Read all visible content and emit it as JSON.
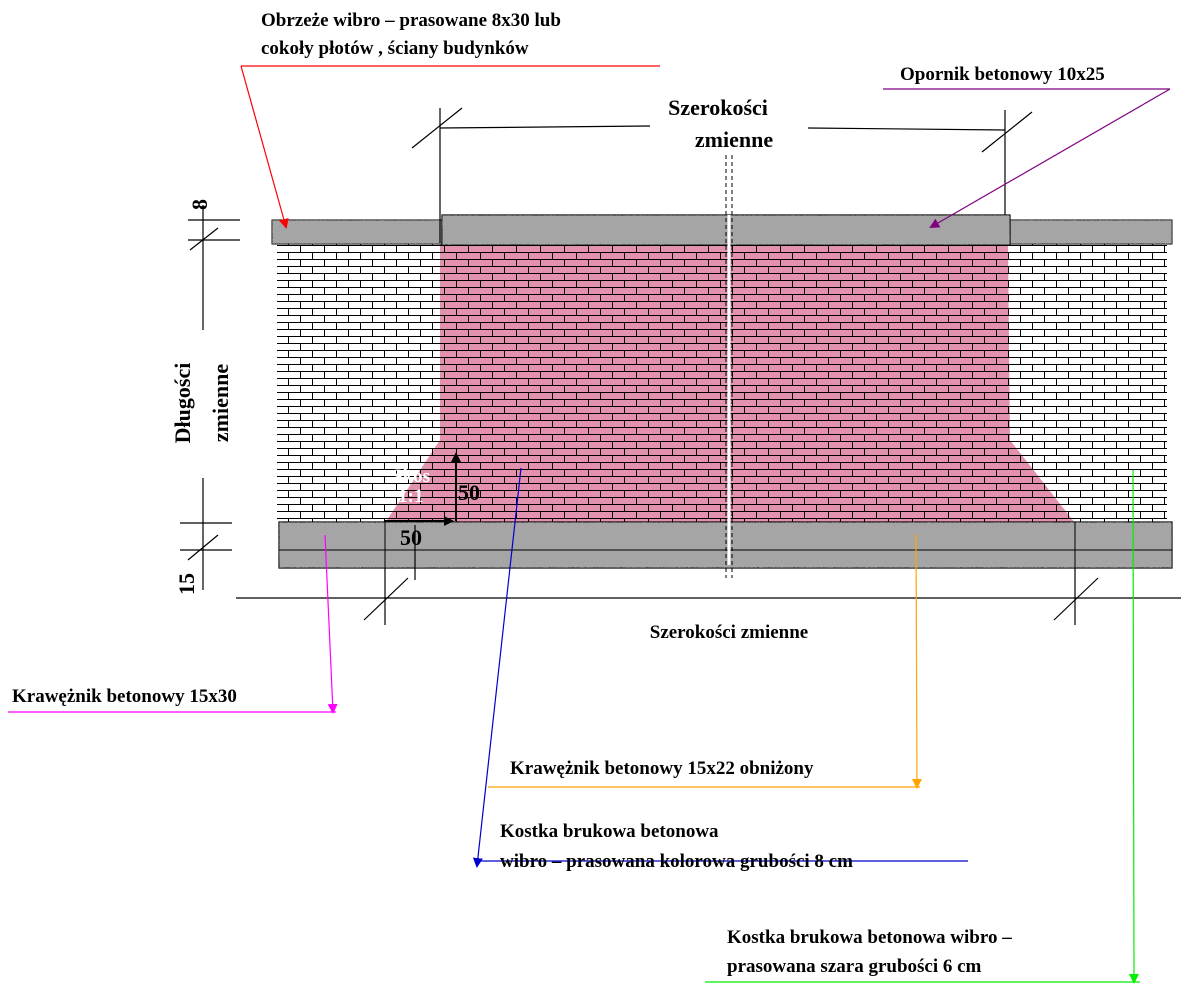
{
  "labels": {
    "wall_edge_line1": "Obrzeże wibro – prasowane 8x30 lub",
    "wall_edge_line2": "cokoły płotów , ściany budynków",
    "stop_curb": "Opornik betonowy 10x25",
    "width_top_line1": "Szerokości",
    "width_top_line2": "zmienne",
    "length_line1": "Długości",
    "length_line2": "zmienne",
    "dim_8": "8",
    "dim_15": "15",
    "dim_50_h": "50",
    "dim_50_v": "50",
    "slope_line1": "Skos",
    "slope_line2": "1:1",
    "width_bottom": "Szerokości zmienne",
    "curb_15x30": "Krawężnik betonowy 15x30",
    "curb_15x22": "Krawężnik betonowy 15x22 obniżony",
    "colored_pavers_line1": "Kostka brukowa betonowa",
    "colored_pavers_line2": "wibro – prasowana kolorowa grubości 8 cm",
    "grey_pavers_line1": "Kostka brukowa betonowa wibro –",
    "grey_pavers_line2": "prasowana szara grubości 6 cm"
  },
  "colors": {
    "pink_pavers": "#e292ae",
    "grey_pavers": "#ffffff",
    "concrete": "#a8a8a8",
    "leader_wall_edge": "#ff0000",
    "leader_stop_curb": "#800080",
    "leader_curb_15x30": "#ff00ff",
    "leader_curb_15x22": "#ffa500",
    "leader_colored_pavers": "#0000cc",
    "leader_grey_pavers": "#00ee00"
  }
}
